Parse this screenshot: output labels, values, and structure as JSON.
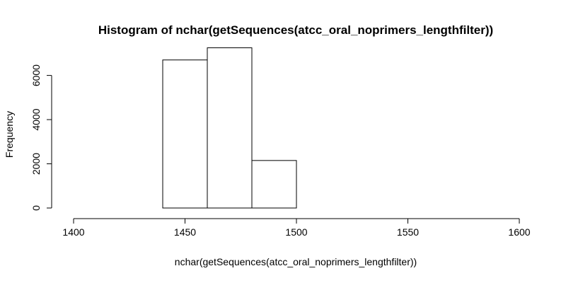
{
  "chart_data": {
    "type": "bar",
    "title": "Histogram of nchar(getSequences(atcc_oral_noprimers_lengthfilter))",
    "xlabel": "nchar(getSequences(atcc_oral_noprimers_lengthfilter))",
    "ylabel": "Frequency",
    "xlim": [
      1400,
      1600
    ],
    "ylim": [
      0,
      7300
    ],
    "x_ticks": [
      1400,
      1450,
      1500,
      1550,
      1600
    ],
    "y_ticks": [
      0,
      2000,
      4000,
      6000
    ],
    "bins": [
      {
        "start": 1400,
        "end": 1420,
        "value": 0
      },
      {
        "start": 1420,
        "end": 1440,
        "value": 0
      },
      {
        "start": 1440,
        "end": 1460,
        "value": 6700
      },
      {
        "start": 1460,
        "end": 1480,
        "value": 7250
      },
      {
        "start": 1480,
        "end": 1500,
        "value": 2150
      },
      {
        "start": 1500,
        "end": 1520,
        "value": 0
      },
      {
        "start": 1520,
        "end": 1540,
        "value": 0
      },
      {
        "start": 1540,
        "end": 1560,
        "value": 0
      },
      {
        "start": 1560,
        "end": 1580,
        "value": 0
      },
      {
        "start": 1580,
        "end": 1600,
        "value": 0
      }
    ],
    "grid": false,
    "fill_color": "#ffffff",
    "stroke_color": "#000000"
  }
}
